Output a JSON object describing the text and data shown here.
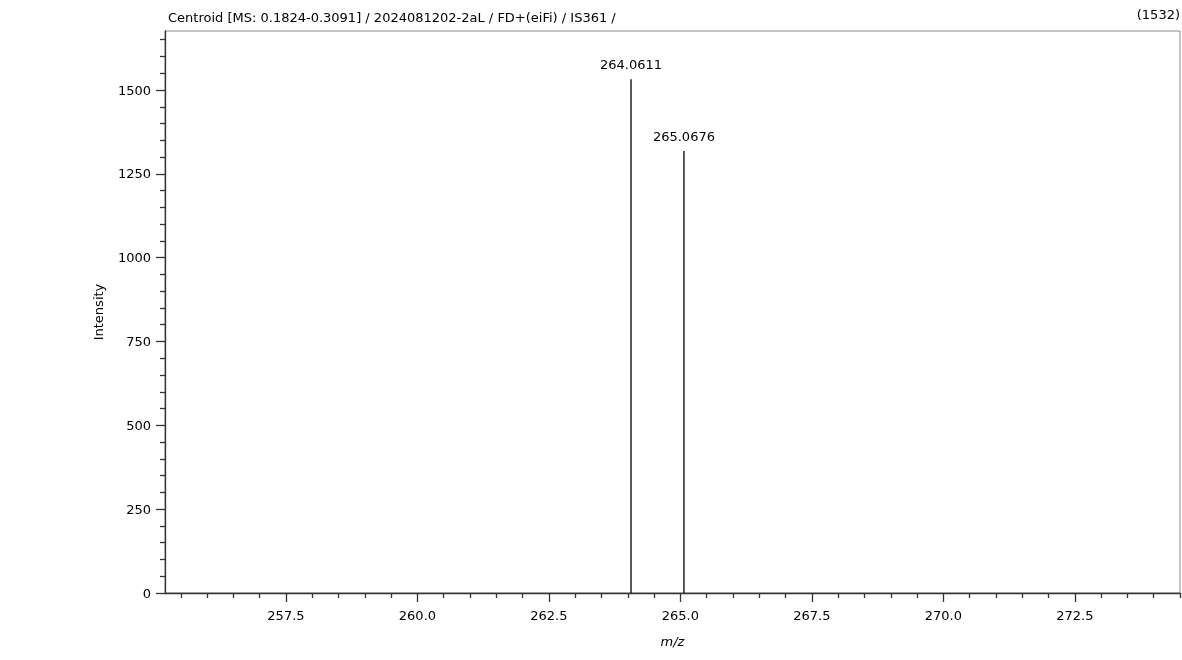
{
  "chart_data": {
    "type": "bar",
    "title": "Centroid [MS: 0.1824-0.3091] / 2024081202-2aL / FD+(eiFi) / IS361 /",
    "xlabel": "m/z",
    "ylabel": "Intensity",
    "annotations": [
      "(1532)",
      {
        "text": "264.0611",
        "x": 264.0611,
        "y": 1532
      },
      {
        "text": "265.0676",
        "x": 265.0676,
        "y": 1318
      }
    ],
    "x": [
      264.0611,
      265.0676
    ],
    "values": [
      1532,
      1318
    ],
    "color": "#000000",
    "xlim": [
      255.2,
      274.5
    ],
    "xticks": [
      {
        "value": 257.5,
        "label": "257.5"
      },
      {
        "value": 260,
        "label": "260.0"
      },
      {
        "value": 262.5,
        "label": "262.5"
      },
      {
        "value": 265,
        "label": "265.0"
      },
      {
        "value": 267.5,
        "label": "267.5"
      },
      {
        "value": 270,
        "label": "270.0"
      },
      {
        "value": 272.5,
        "label": "272.5"
      }
    ],
    "ylim": [
      0,
      1676
    ],
    "yticks": [
      0,
      250,
      500,
      750,
      1000,
      1250,
      1500
    ],
    "grid": false
  }
}
